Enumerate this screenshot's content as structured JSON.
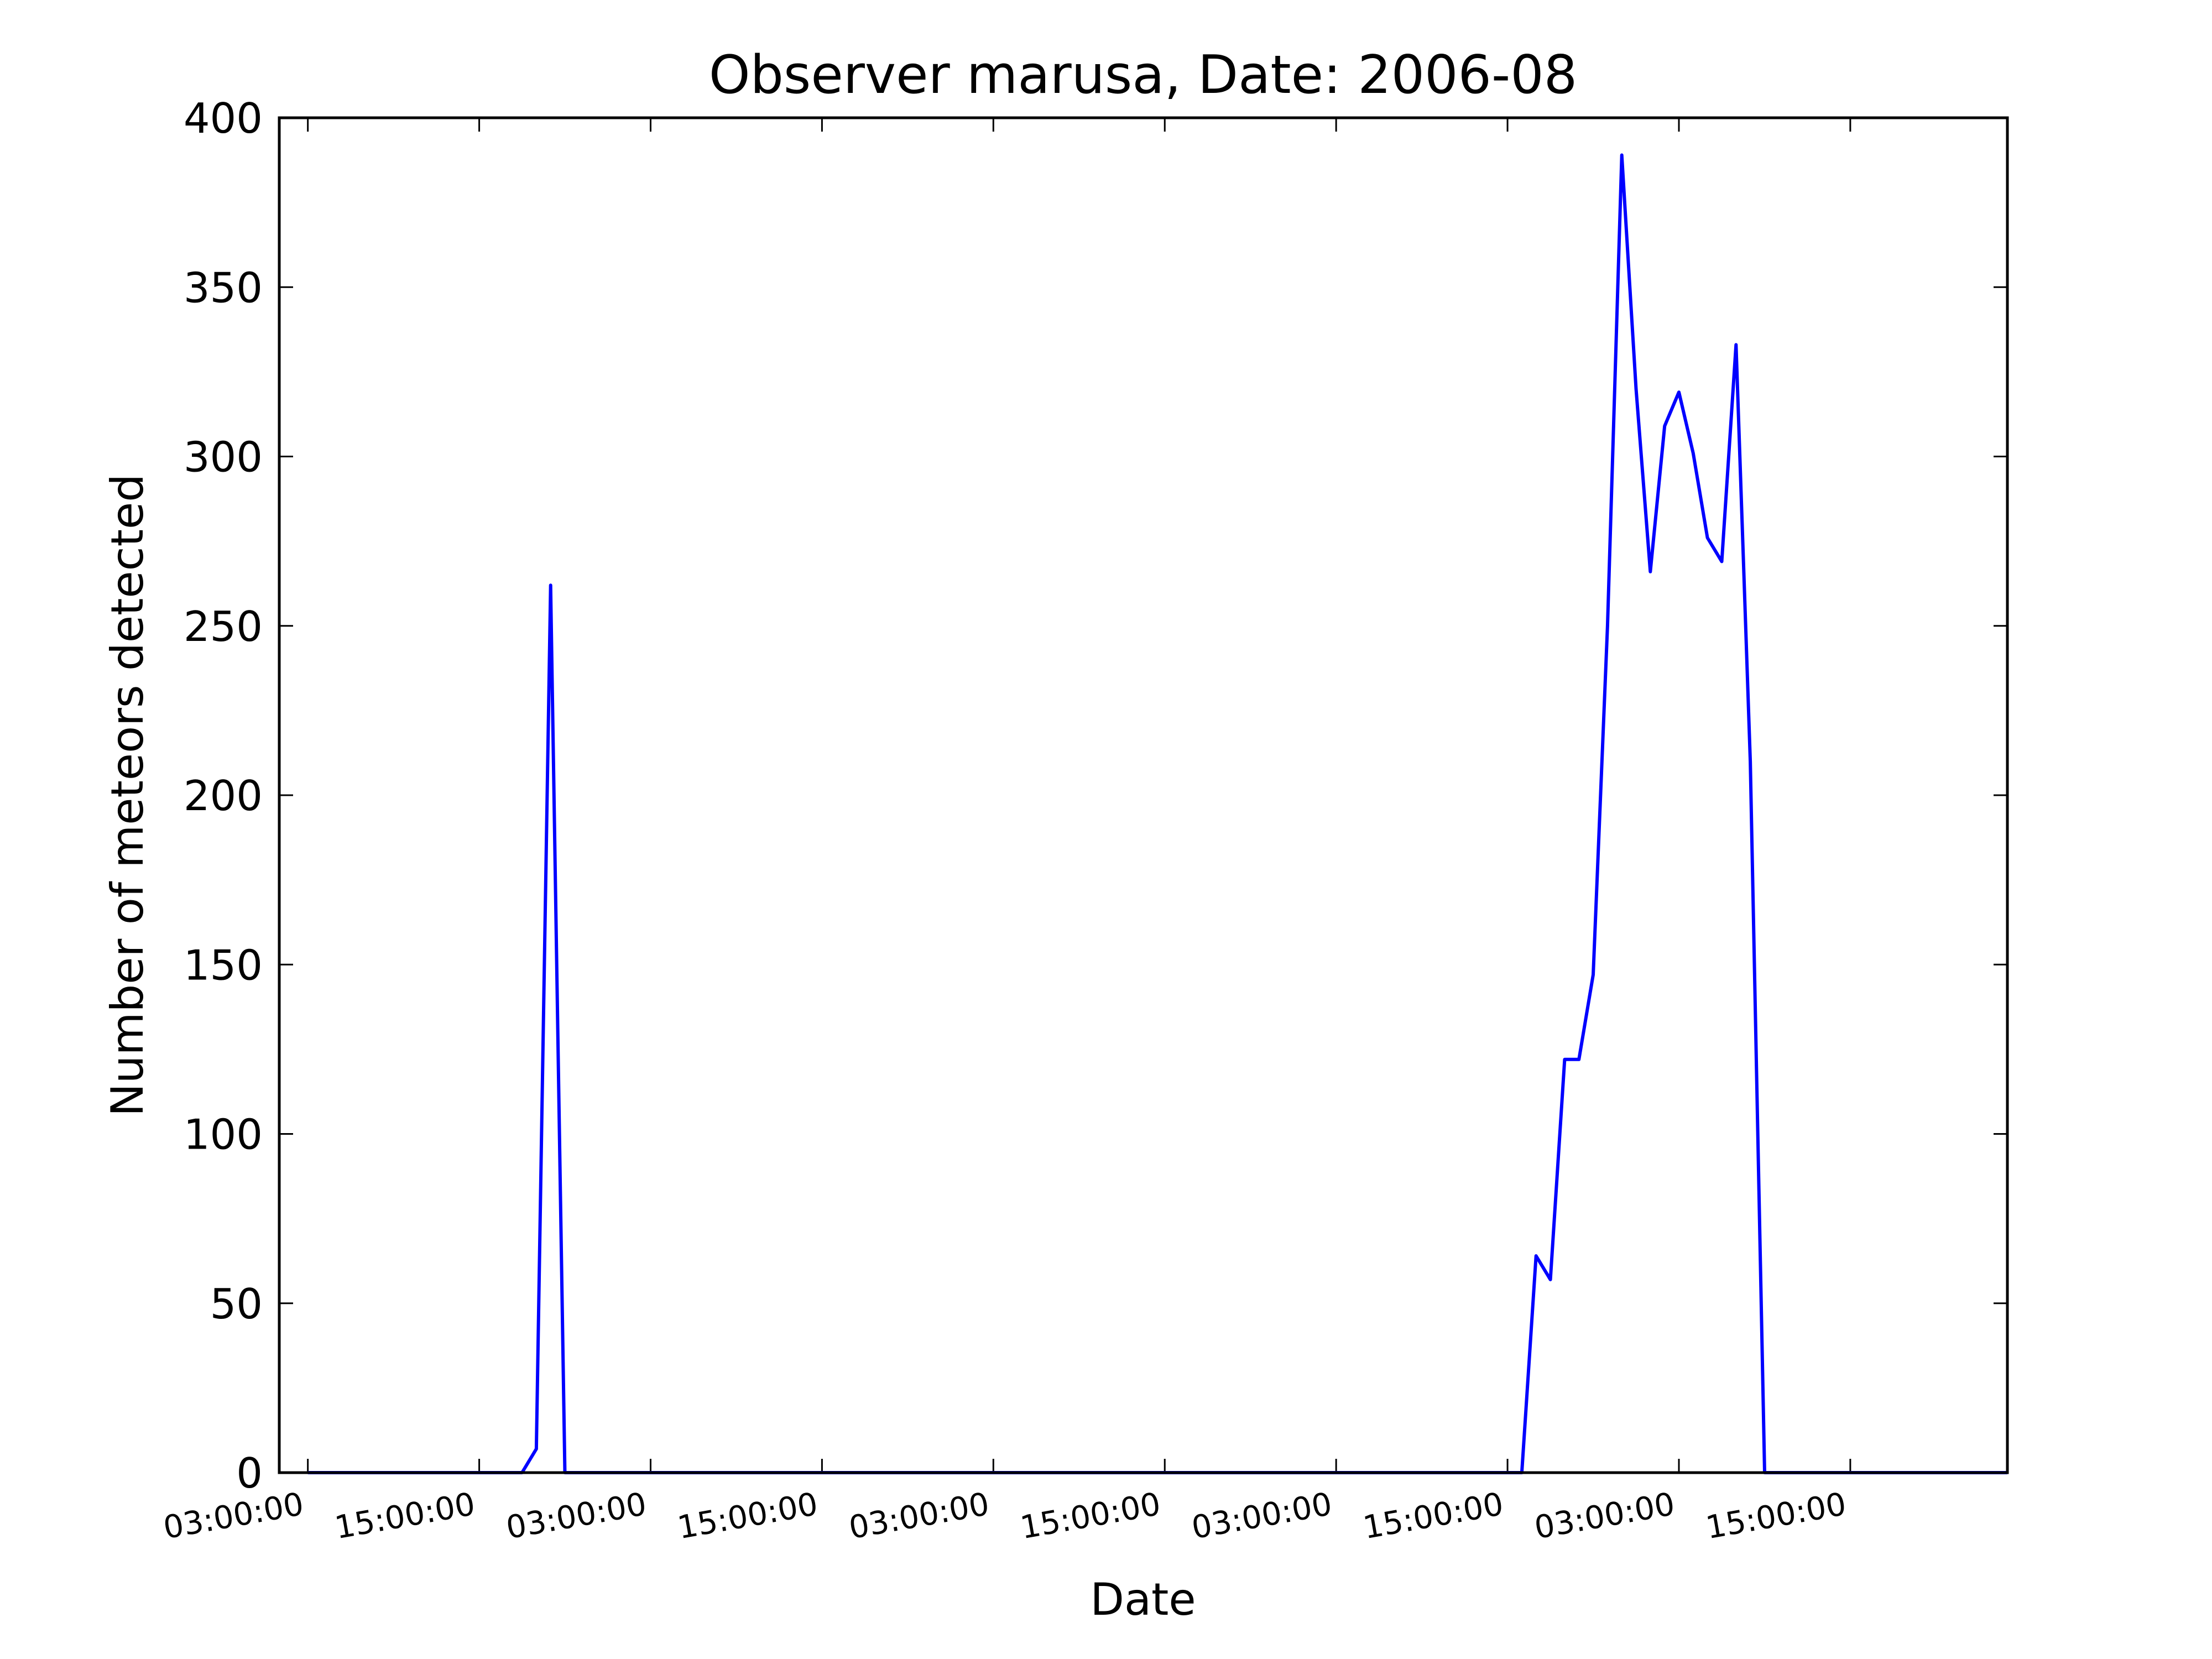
{
  "chart_data": {
    "type": "line",
    "title": "Observer marusa, Date: 2006-08",
    "xlabel": "Date",
    "ylabel": "Number of meteors detected",
    "ylim": [
      0,
      400
    ],
    "yticks": [
      0,
      50,
      100,
      150,
      200,
      250,
      300,
      350,
      400
    ],
    "xlim": [
      "2006-08-08 01:00",
      "2006-08-13 02:00"
    ],
    "xticks": [
      {
        "value": "2006-08-08 03:00",
        "label": "03:00:00"
      },
      {
        "value": "2006-08-08 15:00",
        "label": "15:00:00"
      },
      {
        "value": "2006-08-09 03:00",
        "label": "03:00:00"
      },
      {
        "value": "2006-08-09 15:00",
        "label": "15:00:00"
      },
      {
        "value": "2006-08-10 03:00",
        "label": "03:00:00"
      },
      {
        "value": "2006-08-10 15:00",
        "label": "15:00:00"
      },
      {
        "value": "2006-08-11 03:00",
        "label": "03:00:00"
      },
      {
        "value": "2006-08-11 15:00",
        "label": "15:00:00"
      },
      {
        "value": "2006-08-12 03:00",
        "label": "03:00:00"
      },
      {
        "value": "2006-08-12 15:00",
        "label": "15:00:00"
      }
    ],
    "grid": false,
    "series": [
      {
        "color": "#0000ff",
        "points": [
          {
            "x": "2006-08-08 03:00",
            "y": 0
          },
          {
            "x": "2006-08-08 18:00",
            "y": 0
          },
          {
            "x": "2006-08-08 19:00",
            "y": 7
          },
          {
            "x": "2006-08-08 20:00",
            "y": 262
          },
          {
            "x": "2006-08-08 21:00",
            "y": 0
          },
          {
            "x": "2006-08-08 23:00",
            "y": 0
          },
          {
            "x": "2006-08-10 00:00",
            "y": 0
          },
          {
            "x": "2006-08-11 01:00",
            "y": 0
          },
          {
            "x": "2006-08-11 16:00",
            "y": 0
          },
          {
            "x": "2006-08-11 17:00",
            "y": 64
          },
          {
            "x": "2006-08-11 18:00",
            "y": 57
          },
          {
            "x": "2006-08-11 19:00",
            "y": 122
          },
          {
            "x": "2006-08-11 20:00",
            "y": 122
          },
          {
            "x": "2006-08-11 21:00",
            "y": 147
          },
          {
            "x": "2006-08-11 22:00",
            "y": 250
          },
          {
            "x": "2006-08-11 23:00",
            "y": 389
          },
          {
            "x": "2006-08-12 00:00",
            "y": 320
          },
          {
            "x": "2006-08-12 01:00",
            "y": 266
          },
          {
            "x": "2006-08-12 02:00",
            "y": 309
          },
          {
            "x": "2006-08-12 03:00",
            "y": 319
          },
          {
            "x": "2006-08-12 04:00",
            "y": 301
          },
          {
            "x": "2006-08-12 05:00",
            "y": 276
          },
          {
            "x": "2006-08-12 06:00",
            "y": 269
          },
          {
            "x": "2006-08-12 07:00",
            "y": 333
          },
          {
            "x": "2006-08-12 08:00",
            "y": 210
          },
          {
            "x": "2006-08-12 09:00",
            "y": 0
          },
          {
            "x": "2006-08-13 02:00",
            "y": 0
          }
        ]
      }
    ]
  }
}
